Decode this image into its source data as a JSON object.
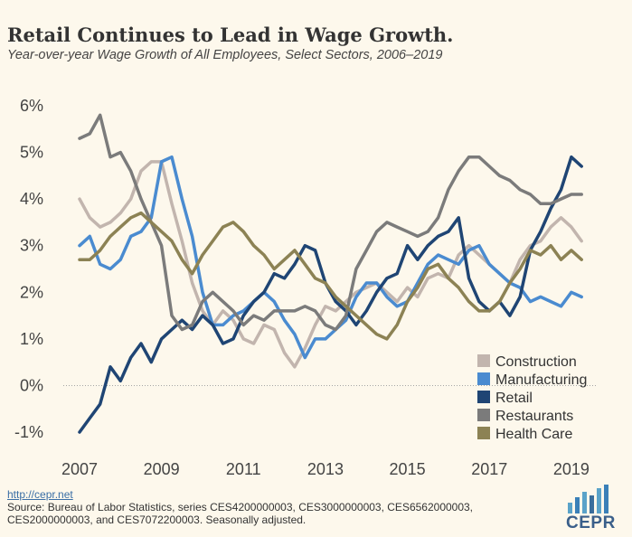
{
  "title": "Retail Continues to Lead in Wage Growth.",
  "subtitle": "Year-over-year Wage Growth of All Employees, Select Sectors, 2006–2019",
  "footer": {
    "link": "http://cepr.net",
    "source": "Source: Bureau of Labor Statistics, series CES4200000003, CES3000000003, CES6562000003, CES2000000003, and CES7072200003. Seasonally adjusted.",
    "logo": "CEPR"
  },
  "chart_data": {
    "type": "line",
    "title": "Retail Continues to Lead in Wage Growth.",
    "subtitle": "Year-over-year Wage Growth of All Employees, Select Sectors, 2006–2019",
    "xlim": [
      2007,
      2019.4
    ],
    "ylim": [
      -1,
      6
    ],
    "x_ticks": [
      "2007",
      "2009",
      "2011",
      "2013",
      "2015",
      "2017",
      "2019"
    ],
    "y_ticks": [
      "-1%",
      "0%",
      "1%",
      "2%",
      "3%",
      "4%",
      "5%",
      "6%"
    ],
    "legend_position": "bottom-right",
    "grid": false,
    "series": [
      {
        "name": "Construction",
        "color": "#c2b5ae",
        "points": [
          [
            2007.0,
            4.0
          ],
          [
            2007.25,
            3.6
          ],
          [
            2007.5,
            3.4
          ],
          [
            2007.75,
            3.5
          ],
          [
            2008.0,
            3.7
          ],
          [
            2008.25,
            4.0
          ],
          [
            2008.5,
            4.6
          ],
          [
            2008.75,
            4.8
          ],
          [
            2009.0,
            4.8
          ],
          [
            2009.25,
            3.9
          ],
          [
            2009.5,
            3.1
          ],
          [
            2009.75,
            2.2
          ],
          [
            2010.0,
            1.6
          ],
          [
            2010.25,
            1.3
          ],
          [
            2010.5,
            1.6
          ],
          [
            2010.75,
            1.4
          ],
          [
            2011.0,
            1.0
          ],
          [
            2011.25,
            0.9
          ],
          [
            2011.5,
            1.3
          ],
          [
            2011.75,
            1.2
          ],
          [
            2012.0,
            0.7
          ],
          [
            2012.25,
            0.4
          ],
          [
            2012.5,
            0.8
          ],
          [
            2012.75,
            1.3
          ],
          [
            2013.0,
            1.7
          ],
          [
            2013.25,
            1.6
          ],
          [
            2013.5,
            1.8
          ],
          [
            2013.75,
            2.0
          ],
          [
            2014.0,
            2.1
          ],
          [
            2014.25,
            2.2
          ],
          [
            2014.5,
            2.0
          ],
          [
            2014.75,
            1.8
          ],
          [
            2015.0,
            2.1
          ],
          [
            2015.25,
            1.9
          ],
          [
            2015.5,
            2.3
          ],
          [
            2015.75,
            2.4
          ],
          [
            2016.0,
            2.3
          ],
          [
            2016.25,
            2.8
          ],
          [
            2016.5,
            3.0
          ],
          [
            2016.75,
            2.8
          ],
          [
            2017.0,
            2.6
          ],
          [
            2017.25,
            2.4
          ],
          [
            2017.5,
            2.2
          ],
          [
            2017.75,
            2.7
          ],
          [
            2018.0,
            3.0
          ],
          [
            2018.25,
            3.1
          ],
          [
            2018.5,
            3.4
          ],
          [
            2018.75,
            3.6
          ],
          [
            2019.0,
            3.4
          ],
          [
            2019.25,
            3.1
          ]
        ]
      },
      {
        "name": "Manufacturing",
        "color": "#4a8bd0",
        "points": [
          [
            2007.0,
            3.0
          ],
          [
            2007.25,
            3.2
          ],
          [
            2007.5,
            2.6
          ],
          [
            2007.75,
            2.5
          ],
          [
            2008.0,
            2.7
          ],
          [
            2008.25,
            3.2
          ],
          [
            2008.5,
            3.3
          ],
          [
            2008.75,
            3.6
          ],
          [
            2009.0,
            4.8
          ],
          [
            2009.25,
            4.9
          ],
          [
            2009.5,
            4.0
          ],
          [
            2009.75,
            3.2
          ],
          [
            2010.0,
            2.0
          ],
          [
            2010.25,
            1.3
          ],
          [
            2010.5,
            1.3
          ],
          [
            2010.75,
            1.5
          ],
          [
            2011.0,
            1.6
          ],
          [
            2011.25,
            1.8
          ],
          [
            2011.5,
            2.0
          ],
          [
            2011.75,
            1.8
          ],
          [
            2012.0,
            1.4
          ],
          [
            2012.25,
            1.1
          ],
          [
            2012.5,
            0.6
          ],
          [
            2012.75,
            1.0
          ],
          [
            2013.0,
            1.0
          ],
          [
            2013.25,
            1.2
          ],
          [
            2013.5,
            1.4
          ],
          [
            2013.75,
            1.9
          ],
          [
            2014.0,
            2.2
          ],
          [
            2014.25,
            2.2
          ],
          [
            2014.5,
            1.9
          ],
          [
            2014.75,
            1.7
          ],
          [
            2015.0,
            1.8
          ],
          [
            2015.25,
            2.2
          ],
          [
            2015.5,
            2.6
          ],
          [
            2015.75,
            2.8
          ],
          [
            2016.0,
            2.7
          ],
          [
            2016.25,
            2.6
          ],
          [
            2016.5,
            2.9
          ],
          [
            2016.75,
            3.0
          ],
          [
            2017.0,
            2.6
          ],
          [
            2017.25,
            2.4
          ],
          [
            2017.5,
            2.2
          ],
          [
            2017.75,
            2.1
          ],
          [
            2018.0,
            1.8
          ],
          [
            2018.25,
            1.9
          ],
          [
            2018.5,
            1.8
          ],
          [
            2018.75,
            1.7
          ],
          [
            2019.0,
            2.0
          ],
          [
            2019.25,
            1.9
          ]
        ]
      },
      {
        "name": "Retail",
        "color": "#1f4574",
        "points": [
          [
            2007.0,
            -1.0
          ],
          [
            2007.25,
            -0.7
          ],
          [
            2007.5,
            -0.4
          ],
          [
            2007.75,
            0.4
          ],
          [
            2008.0,
            0.1
          ],
          [
            2008.25,
            0.6
          ],
          [
            2008.5,
            0.9
          ],
          [
            2008.75,
            0.5
          ],
          [
            2009.0,
            1.0
          ],
          [
            2009.25,
            1.2
          ],
          [
            2009.5,
            1.4
          ],
          [
            2009.75,
            1.2
          ],
          [
            2010.0,
            1.5
          ],
          [
            2010.25,
            1.3
          ],
          [
            2010.5,
            0.9
          ],
          [
            2010.75,
            1.0
          ],
          [
            2011.0,
            1.5
          ],
          [
            2011.25,
            1.8
          ],
          [
            2011.5,
            2.0
          ],
          [
            2011.75,
            2.4
          ],
          [
            2012.0,
            2.3
          ],
          [
            2012.25,
            2.6
          ],
          [
            2012.5,
            3.0
          ],
          [
            2012.75,
            2.9
          ],
          [
            2013.0,
            2.2
          ],
          [
            2013.25,
            1.8
          ],
          [
            2013.5,
            1.6
          ],
          [
            2013.75,
            1.3
          ],
          [
            2014.0,
            1.6
          ],
          [
            2014.25,
            2.0
          ],
          [
            2014.5,
            2.3
          ],
          [
            2014.75,
            2.4
          ],
          [
            2015.0,
            3.0
          ],
          [
            2015.25,
            2.7
          ],
          [
            2015.5,
            3.0
          ],
          [
            2015.75,
            3.2
          ],
          [
            2016.0,
            3.3
          ],
          [
            2016.25,
            3.6
          ],
          [
            2016.5,
            2.3
          ],
          [
            2016.75,
            1.8
          ],
          [
            2017.0,
            1.6
          ],
          [
            2017.25,
            1.8
          ],
          [
            2017.5,
            1.5
          ],
          [
            2017.75,
            1.9
          ],
          [
            2018.0,
            2.9
          ],
          [
            2018.25,
            3.3
          ],
          [
            2018.5,
            3.8
          ],
          [
            2018.75,
            4.2
          ],
          [
            2019.0,
            4.9
          ],
          [
            2019.25,
            4.7
          ]
        ]
      },
      {
        "name": "Restaurants",
        "color": "#7b7b7b",
        "points": [
          [
            2007.0,
            5.3
          ],
          [
            2007.25,
            5.4
          ],
          [
            2007.5,
            5.8
          ],
          [
            2007.75,
            4.9
          ],
          [
            2008.0,
            5.0
          ],
          [
            2008.25,
            4.6
          ],
          [
            2008.5,
            4.0
          ],
          [
            2008.75,
            3.5
          ],
          [
            2009.0,
            3.0
          ],
          [
            2009.25,
            1.5
          ],
          [
            2009.5,
            1.2
          ],
          [
            2009.75,
            1.3
          ],
          [
            2010.0,
            1.8
          ],
          [
            2010.25,
            2.0
          ],
          [
            2010.5,
            1.8
          ],
          [
            2010.75,
            1.6
          ],
          [
            2011.0,
            1.3
          ],
          [
            2011.25,
            1.5
          ],
          [
            2011.5,
            1.4
          ],
          [
            2011.75,
            1.6
          ],
          [
            2012.0,
            1.6
          ],
          [
            2012.25,
            1.6
          ],
          [
            2012.5,
            1.7
          ],
          [
            2012.75,
            1.6
          ],
          [
            2013.0,
            1.3
          ],
          [
            2013.25,
            1.2
          ],
          [
            2013.5,
            1.5
          ],
          [
            2013.75,
            2.5
          ],
          [
            2014.0,
            2.9
          ],
          [
            2014.25,
            3.3
          ],
          [
            2014.5,
            3.5
          ],
          [
            2014.75,
            3.4
          ],
          [
            2015.0,
            3.3
          ],
          [
            2015.25,
            3.2
          ],
          [
            2015.5,
            3.3
          ],
          [
            2015.75,
            3.6
          ],
          [
            2016.0,
            4.2
          ],
          [
            2016.25,
            4.6
          ],
          [
            2016.5,
            4.9
          ],
          [
            2016.75,
            4.9
          ],
          [
            2017.0,
            4.7
          ],
          [
            2017.25,
            4.5
          ],
          [
            2017.5,
            4.4
          ],
          [
            2017.75,
            4.2
          ],
          [
            2018.0,
            4.1
          ],
          [
            2018.25,
            3.9
          ],
          [
            2018.5,
            3.9
          ],
          [
            2018.75,
            4.0
          ],
          [
            2019.0,
            4.1
          ],
          [
            2019.25,
            4.1
          ]
        ]
      },
      {
        "name": "Health Care",
        "color": "#8c8254",
        "points": [
          [
            2007.0,
            2.7
          ],
          [
            2007.25,
            2.7
          ],
          [
            2007.5,
            2.9
          ],
          [
            2007.75,
            3.2
          ],
          [
            2008.0,
            3.4
          ],
          [
            2008.25,
            3.6
          ],
          [
            2008.5,
            3.7
          ],
          [
            2008.75,
            3.5
          ],
          [
            2009.0,
            3.3
          ],
          [
            2009.25,
            3.1
          ],
          [
            2009.5,
            2.7
          ],
          [
            2009.75,
            2.4
          ],
          [
            2010.0,
            2.8
          ],
          [
            2010.25,
            3.1
          ],
          [
            2010.5,
            3.4
          ],
          [
            2010.75,
            3.5
          ],
          [
            2011.0,
            3.3
          ],
          [
            2011.25,
            3.0
          ],
          [
            2011.5,
            2.8
          ],
          [
            2011.75,
            2.5
          ],
          [
            2012.0,
            2.7
          ],
          [
            2012.25,
            2.9
          ],
          [
            2012.5,
            2.6
          ],
          [
            2012.75,
            2.3
          ],
          [
            2013.0,
            2.2
          ],
          [
            2013.25,
            1.9
          ],
          [
            2013.5,
            1.7
          ],
          [
            2013.75,
            1.5
          ],
          [
            2014.0,
            1.3
          ],
          [
            2014.25,
            1.1
          ],
          [
            2014.5,
            1.0
          ],
          [
            2014.75,
            1.3
          ],
          [
            2015.0,
            1.8
          ],
          [
            2015.25,
            2.1
          ],
          [
            2015.5,
            2.5
          ],
          [
            2015.75,
            2.6
          ],
          [
            2016.0,
            2.3
          ],
          [
            2016.25,
            2.1
          ],
          [
            2016.5,
            1.8
          ],
          [
            2016.75,
            1.6
          ],
          [
            2017.0,
            1.6
          ],
          [
            2017.25,
            1.8
          ],
          [
            2017.5,
            2.2
          ],
          [
            2017.75,
            2.5
          ],
          [
            2018.0,
            2.9
          ],
          [
            2018.25,
            2.8
          ],
          [
            2018.5,
            3.0
          ],
          [
            2018.75,
            2.7
          ],
          [
            2019.0,
            2.9
          ],
          [
            2019.25,
            2.7
          ]
        ]
      }
    ]
  }
}
